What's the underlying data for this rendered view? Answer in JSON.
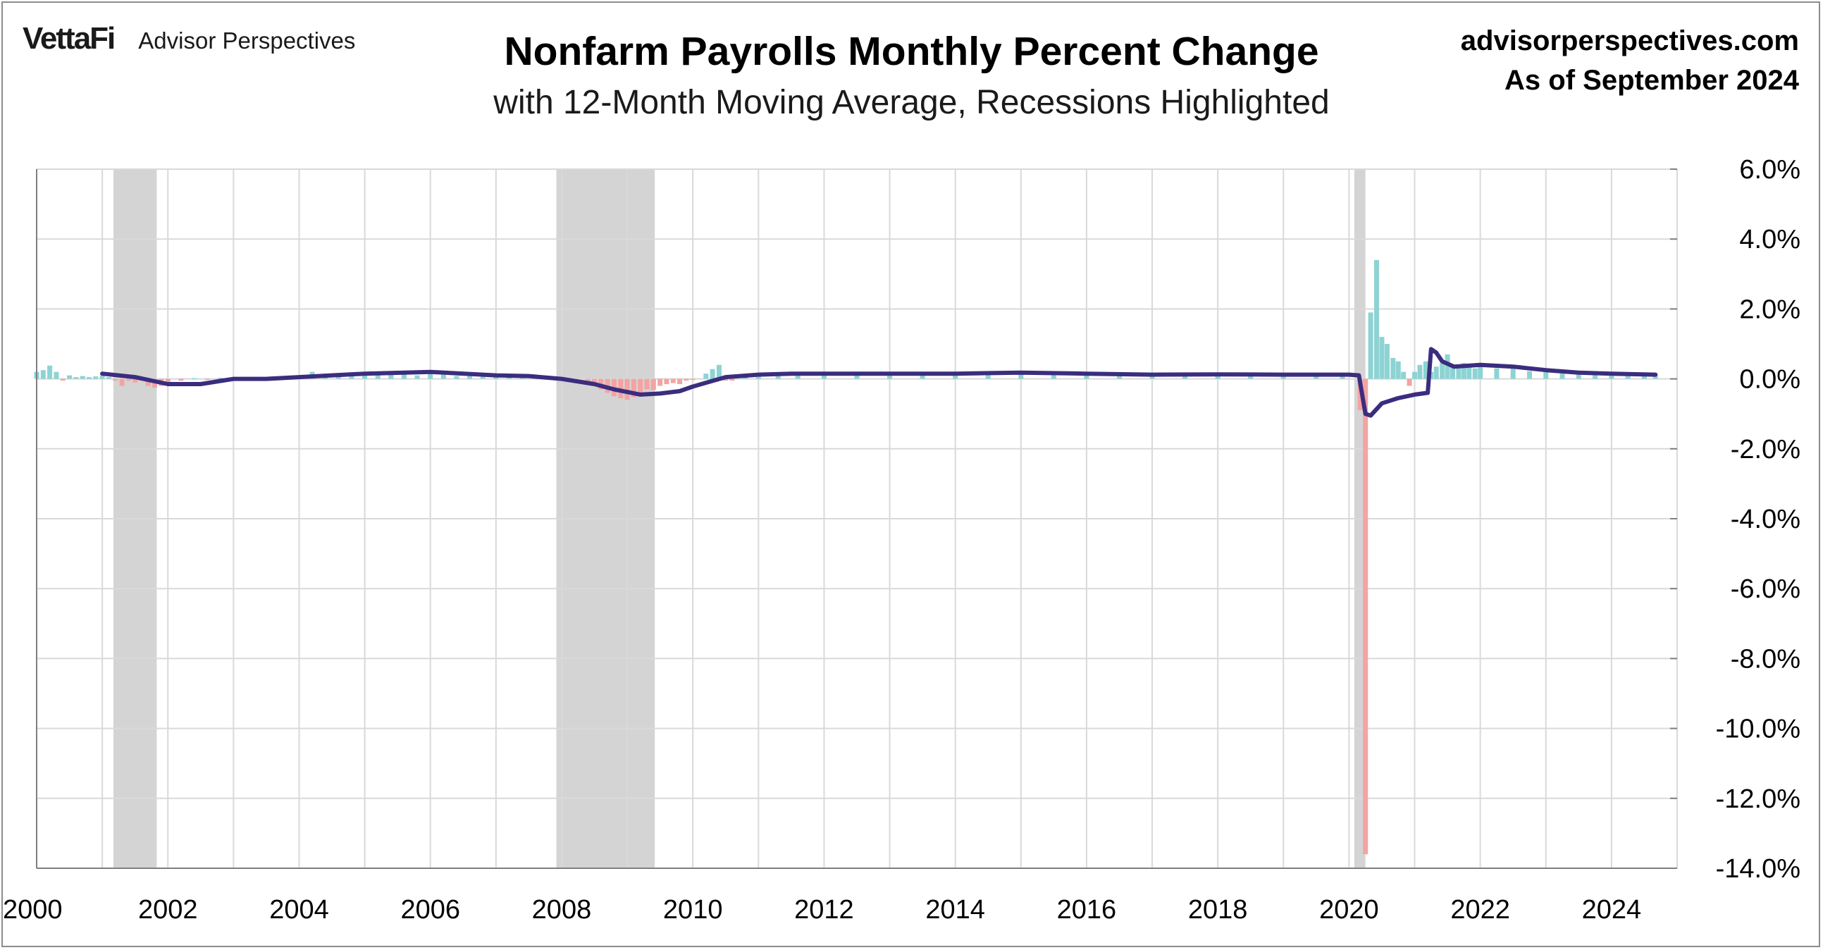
{
  "header": {
    "brand": "VettaFi",
    "brand_sub": "Advisor Perspectives",
    "site": "advisorperspectives.com",
    "as_of": "As of September 2024"
  },
  "colors": {
    "positive_bar": "#8ed3d3",
    "negative_bar": "#f4a3a3",
    "moving_average": "#3b2d7e",
    "recession": "#d4d4d4",
    "grid": "#d9d9d9"
  },
  "chart_data": {
    "type": "bar",
    "title": "Nonfarm Payrolls Monthly Percent Change",
    "subtitle": "with 12-Month Moving Average, Recessions Highlighted",
    "xlabel": "",
    "ylabel": "",
    "xlim": [
      2000.0,
      2025.0
    ],
    "ylim": [
      -14.0,
      6.0
    ],
    "y_ticks": [
      6,
      4,
      2,
      0,
      -2,
      -4,
      -6,
      -8,
      -10,
      -12,
      -14
    ],
    "y_tick_labels": [
      "6.0%",
      "4.0%",
      "2.0%",
      "0.0%",
      "-2.0%",
      "-4.0%",
      "-6.0%",
      "-8.0%",
      "-10.0%",
      "-12.0%",
      "-14.0%"
    ],
    "x_ticks": [
      2000,
      2002,
      2004,
      2006,
      2008,
      2010,
      2012,
      2014,
      2016,
      2018,
      2020,
      2022,
      2024
    ],
    "x_tick_labels": [
      "2000",
      "2002",
      "2004",
      "2006",
      "2008",
      "2010",
      "2012",
      "2014",
      "2016",
      "2018",
      "2020",
      "2022",
      "2024"
    ],
    "grid": true,
    "recessions": [
      {
        "start": 2001.17,
        "end": 2001.83
      },
      {
        "start": 2007.92,
        "end": 2009.42
      },
      {
        "start": 2020.08,
        "end": 2020.25
      }
    ],
    "series": [
      {
        "type": "bar",
        "points": [
          [
            2000.0,
            0.2
          ],
          [
            2000.1,
            0.25
          ],
          [
            2000.2,
            0.38
          ],
          [
            2000.3,
            0.2
          ],
          [
            2000.4,
            -0.05
          ],
          [
            2000.5,
            0.1
          ],
          [
            2000.6,
            0.05
          ],
          [
            2000.7,
            0.08
          ],
          [
            2000.8,
            0.05
          ],
          [
            2000.9,
            0.07
          ],
          [
            2001.0,
            0.1
          ],
          [
            2001.1,
            0.05
          ],
          [
            2001.2,
            -0.05
          ],
          [
            2001.3,
            -0.2
          ],
          [
            2001.4,
            -0.05
          ],
          [
            2001.5,
            -0.1
          ],
          [
            2001.6,
            -0.05
          ],
          [
            2001.7,
            -0.2
          ],
          [
            2001.8,
            -0.25
          ],
          [
            2001.9,
            -0.2
          ],
          [
            2002.0,
            -0.1
          ],
          [
            2002.2,
            -0.05
          ],
          [
            2002.4,
            0.02
          ],
          [
            2002.6,
            -0.03
          ],
          [
            2002.8,
            0.03
          ],
          [
            2003.0,
            -0.05
          ],
          [
            2003.2,
            -0.05
          ],
          [
            2003.4,
            0.0
          ],
          [
            2003.6,
            0.02
          ],
          [
            2003.8,
            0.05
          ],
          [
            2004.0,
            0.08
          ],
          [
            2004.2,
            0.2
          ],
          [
            2004.4,
            0.15
          ],
          [
            2004.6,
            0.08
          ],
          [
            2004.8,
            0.12
          ],
          [
            2005.0,
            0.1
          ],
          [
            2005.2,
            0.18
          ],
          [
            2005.4,
            0.15
          ],
          [
            2005.6,
            0.2
          ],
          [
            2005.8,
            0.1
          ],
          [
            2006.0,
            0.15
          ],
          [
            2006.2,
            0.12
          ],
          [
            2006.4,
            0.08
          ],
          [
            2006.6,
            0.1
          ],
          [
            2006.8,
            0.12
          ],
          [
            2007.0,
            0.1
          ],
          [
            2007.2,
            0.08
          ],
          [
            2007.4,
            0.06
          ],
          [
            2007.6,
            0.04
          ],
          [
            2007.8,
            0.05
          ],
          [
            2008.0,
            -0.05
          ],
          [
            2008.2,
            -0.08
          ],
          [
            2008.4,
            -0.15
          ],
          [
            2008.5,
            -0.2
          ],
          [
            2008.6,
            -0.3
          ],
          [
            2008.7,
            -0.4
          ],
          [
            2008.8,
            -0.5
          ],
          [
            2008.9,
            -0.55
          ],
          [
            2009.0,
            -0.6
          ],
          [
            2009.1,
            -0.52
          ],
          [
            2009.2,
            -0.45
          ],
          [
            2009.3,
            -0.3
          ],
          [
            2009.4,
            -0.32
          ],
          [
            2009.5,
            -0.2
          ],
          [
            2009.6,
            -0.15
          ],
          [
            2009.7,
            -0.12
          ],
          [
            2009.8,
            -0.15
          ],
          [
            2009.9,
            -0.05
          ],
          [
            2010.0,
            -0.02
          ],
          [
            2010.2,
            0.15
          ],
          [
            2010.3,
            0.28
          ],
          [
            2010.4,
            0.4
          ],
          [
            2010.5,
            -0.05
          ],
          [
            2010.6,
            -0.05
          ],
          [
            2010.8,
            0.1
          ],
          [
            2011.0,
            0.1
          ],
          [
            2011.3,
            0.18
          ],
          [
            2011.6,
            0.12
          ],
          [
            2012.0,
            0.2
          ],
          [
            2012.5,
            0.12
          ],
          [
            2013.0,
            0.15
          ],
          [
            2013.5,
            0.14
          ],
          [
            2014.0,
            0.18
          ],
          [
            2014.5,
            0.2
          ],
          [
            2015.0,
            0.2
          ],
          [
            2015.5,
            0.18
          ],
          [
            2016.0,
            0.15
          ],
          [
            2016.5,
            0.13
          ],
          [
            2017.0,
            0.12
          ],
          [
            2017.5,
            0.15
          ],
          [
            2018.0,
            0.14
          ],
          [
            2018.5,
            0.13
          ],
          [
            2019.0,
            0.12
          ],
          [
            2019.5,
            0.13
          ],
          [
            2019.9,
            0.1
          ],
          [
            2020.17,
            -0.9
          ],
          [
            2020.25,
            -13.6
          ],
          [
            2020.33,
            1.9
          ],
          [
            2020.42,
            3.4
          ],
          [
            2020.5,
            1.2
          ],
          [
            2020.58,
            1.0
          ],
          [
            2020.67,
            0.6
          ],
          [
            2020.75,
            0.5
          ],
          [
            2020.83,
            0.2
          ],
          [
            2020.92,
            -0.2
          ],
          [
            2021.0,
            0.2
          ],
          [
            2021.08,
            0.4
          ],
          [
            2021.17,
            0.5
          ],
          [
            2021.25,
            0.2
          ],
          [
            2021.33,
            0.35
          ],
          [
            2021.42,
            0.45
          ],
          [
            2021.5,
            0.7
          ],
          [
            2021.58,
            0.4
          ],
          [
            2021.67,
            0.3
          ],
          [
            2021.75,
            0.45
          ],
          [
            2021.83,
            0.4
          ],
          [
            2021.92,
            0.3
          ],
          [
            2022.0,
            0.4
          ],
          [
            2022.25,
            0.3
          ],
          [
            2022.5,
            0.32
          ],
          [
            2022.75,
            0.22
          ],
          [
            2023.0,
            0.25
          ],
          [
            2023.25,
            0.15
          ],
          [
            2023.5,
            0.12
          ],
          [
            2023.75,
            0.15
          ],
          [
            2024.0,
            0.14
          ],
          [
            2024.25,
            0.11
          ],
          [
            2024.5,
            0.08
          ],
          [
            2024.67,
            0.1
          ]
        ]
      },
      {
        "type": "line",
        "points": [
          [
            2001.0,
            0.15
          ],
          [
            2001.5,
            0.05
          ],
          [
            2002.0,
            -0.15
          ],
          [
            2002.5,
            -0.15
          ],
          [
            2003.0,
            0.0
          ],
          [
            2003.5,
            0.0
          ],
          [
            2004.0,
            0.05
          ],
          [
            2004.5,
            0.1
          ],
          [
            2005.0,
            0.15
          ],
          [
            2006.0,
            0.2
          ],
          [
            2007.0,
            0.1
          ],
          [
            2007.5,
            0.08
          ],
          [
            2008.0,
            0.0
          ],
          [
            2008.5,
            -0.15
          ],
          [
            2008.8,
            -0.3
          ],
          [
            2009.2,
            -0.45
          ],
          [
            2009.5,
            -0.42
          ],
          [
            2009.8,
            -0.35
          ],
          [
            2010.0,
            -0.22
          ],
          [
            2010.5,
            0.05
          ],
          [
            2011.0,
            0.12
          ],
          [
            2011.5,
            0.15
          ],
          [
            2012.0,
            0.15
          ],
          [
            2014.0,
            0.15
          ],
          [
            2015.0,
            0.18
          ],
          [
            2016.0,
            0.15
          ],
          [
            2017.0,
            0.12
          ],
          [
            2018.0,
            0.13
          ],
          [
            2019.0,
            0.12
          ],
          [
            2020.0,
            0.12
          ],
          [
            2020.15,
            0.1
          ],
          [
            2020.25,
            -1.0
          ],
          [
            2020.33,
            -1.05
          ],
          [
            2020.5,
            -0.7
          ],
          [
            2020.75,
            -0.55
          ],
          [
            2021.0,
            -0.45
          ],
          [
            2021.2,
            -0.4
          ],
          [
            2021.25,
            0.85
          ],
          [
            2021.33,
            0.75
          ],
          [
            2021.42,
            0.5
          ],
          [
            2021.6,
            0.35
          ],
          [
            2022.0,
            0.4
          ],
          [
            2022.5,
            0.35
          ],
          [
            2023.0,
            0.25
          ],
          [
            2023.5,
            0.18
          ],
          [
            2024.0,
            0.15
          ],
          [
            2024.67,
            0.12
          ]
        ]
      }
    ]
  }
}
